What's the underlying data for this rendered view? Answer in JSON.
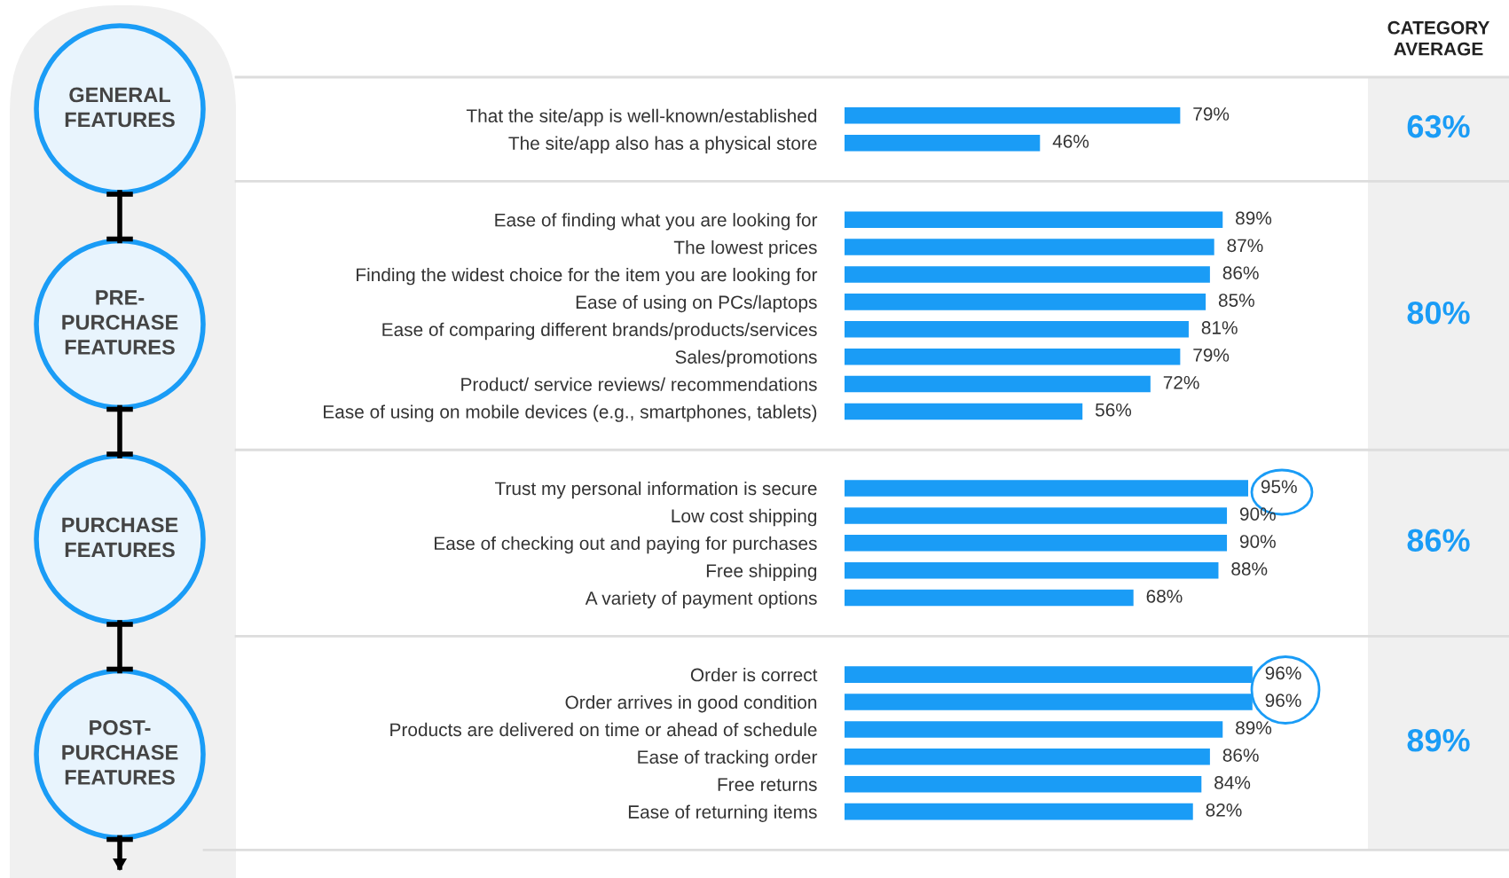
{
  "chart_data": [
    {
      "type": "bar",
      "orientation": "horizontal",
      "ylabel": "GENERAL\nFEATURES",
      "tick_labels": "y",
      "color": "#1a9cf6",
      "categories": [
        "That the site/app is well-known/established",
        "The site/app also has a physical store"
      ],
      "values": [
        79,
        46
      ],
      "value_labels": [
        "79%",
        "46%"
      ],
      "annotations": [
        "CATEGORY\nAVERAGE",
        "63%"
      ]
    },
    {
      "type": "bar",
      "orientation": "horizontal",
      "ylabel": "PRE-\nPURCHASE\nFEATURES",
      "tick_labels": "y",
      "color": "#1a9cf6",
      "categories": [
        "Ease of finding what you are looking for",
        "The lowest prices",
        "Finding the widest choice for the item you are looking for",
        "Ease of using on PCs/laptops",
        "Ease of comparing different brands/products/services",
        "Sales/promotions",
        "Product/ service reviews/ recommendations",
        "Ease of using on mobile devices (e.g., smartphones, tablets)"
      ],
      "values": [
        89,
        87,
        86,
        85,
        81,
        79,
        72,
        56
      ],
      "value_labels": [
        "89%",
        "87%",
        "86%",
        "85%",
        "81%",
        "79%",
        "72%",
        "56%"
      ],
      "annotations": [
        "80%"
      ]
    },
    {
      "type": "bar",
      "orientation": "horizontal",
      "ylabel": "PURCHASE\nFEATURES",
      "tick_labels": "y",
      "color": "#1a9cf6",
      "categories": [
        "Trust my personal information is secure",
        "Low cost shipping",
        "Ease of checking out and paying for purchases",
        "Free shipping",
        "A variety of payment options"
      ],
      "values": [
        95,
        90,
        90,
        88,
        68
      ],
      "value_labels": [
        "95%",
        "90%",
        "90%",
        "88%",
        "68%"
      ],
      "annotations": [
        "86%"
      ]
    },
    {
      "type": "bar",
      "orientation": "horizontal",
      "ylabel": "POST-\nPURCHASE\nFEATURES",
      "tick_labels": "y",
      "color": "#1a9cf6",
      "categories": [
        "Order is correct",
        "Order arrives in good condition",
        "Products are delivered on time or ahead of schedule",
        "Ease of tracking order",
        "Free returns",
        "Ease of returning items"
      ],
      "values": [
        96,
        96,
        89,
        86,
        84,
        82
      ],
      "value_labels": [
        "96%",
        "96%",
        "89%",
        "86%",
        "84%",
        "82%"
      ],
      "annotations": [
        "89%"
      ]
    }
  ]
}
